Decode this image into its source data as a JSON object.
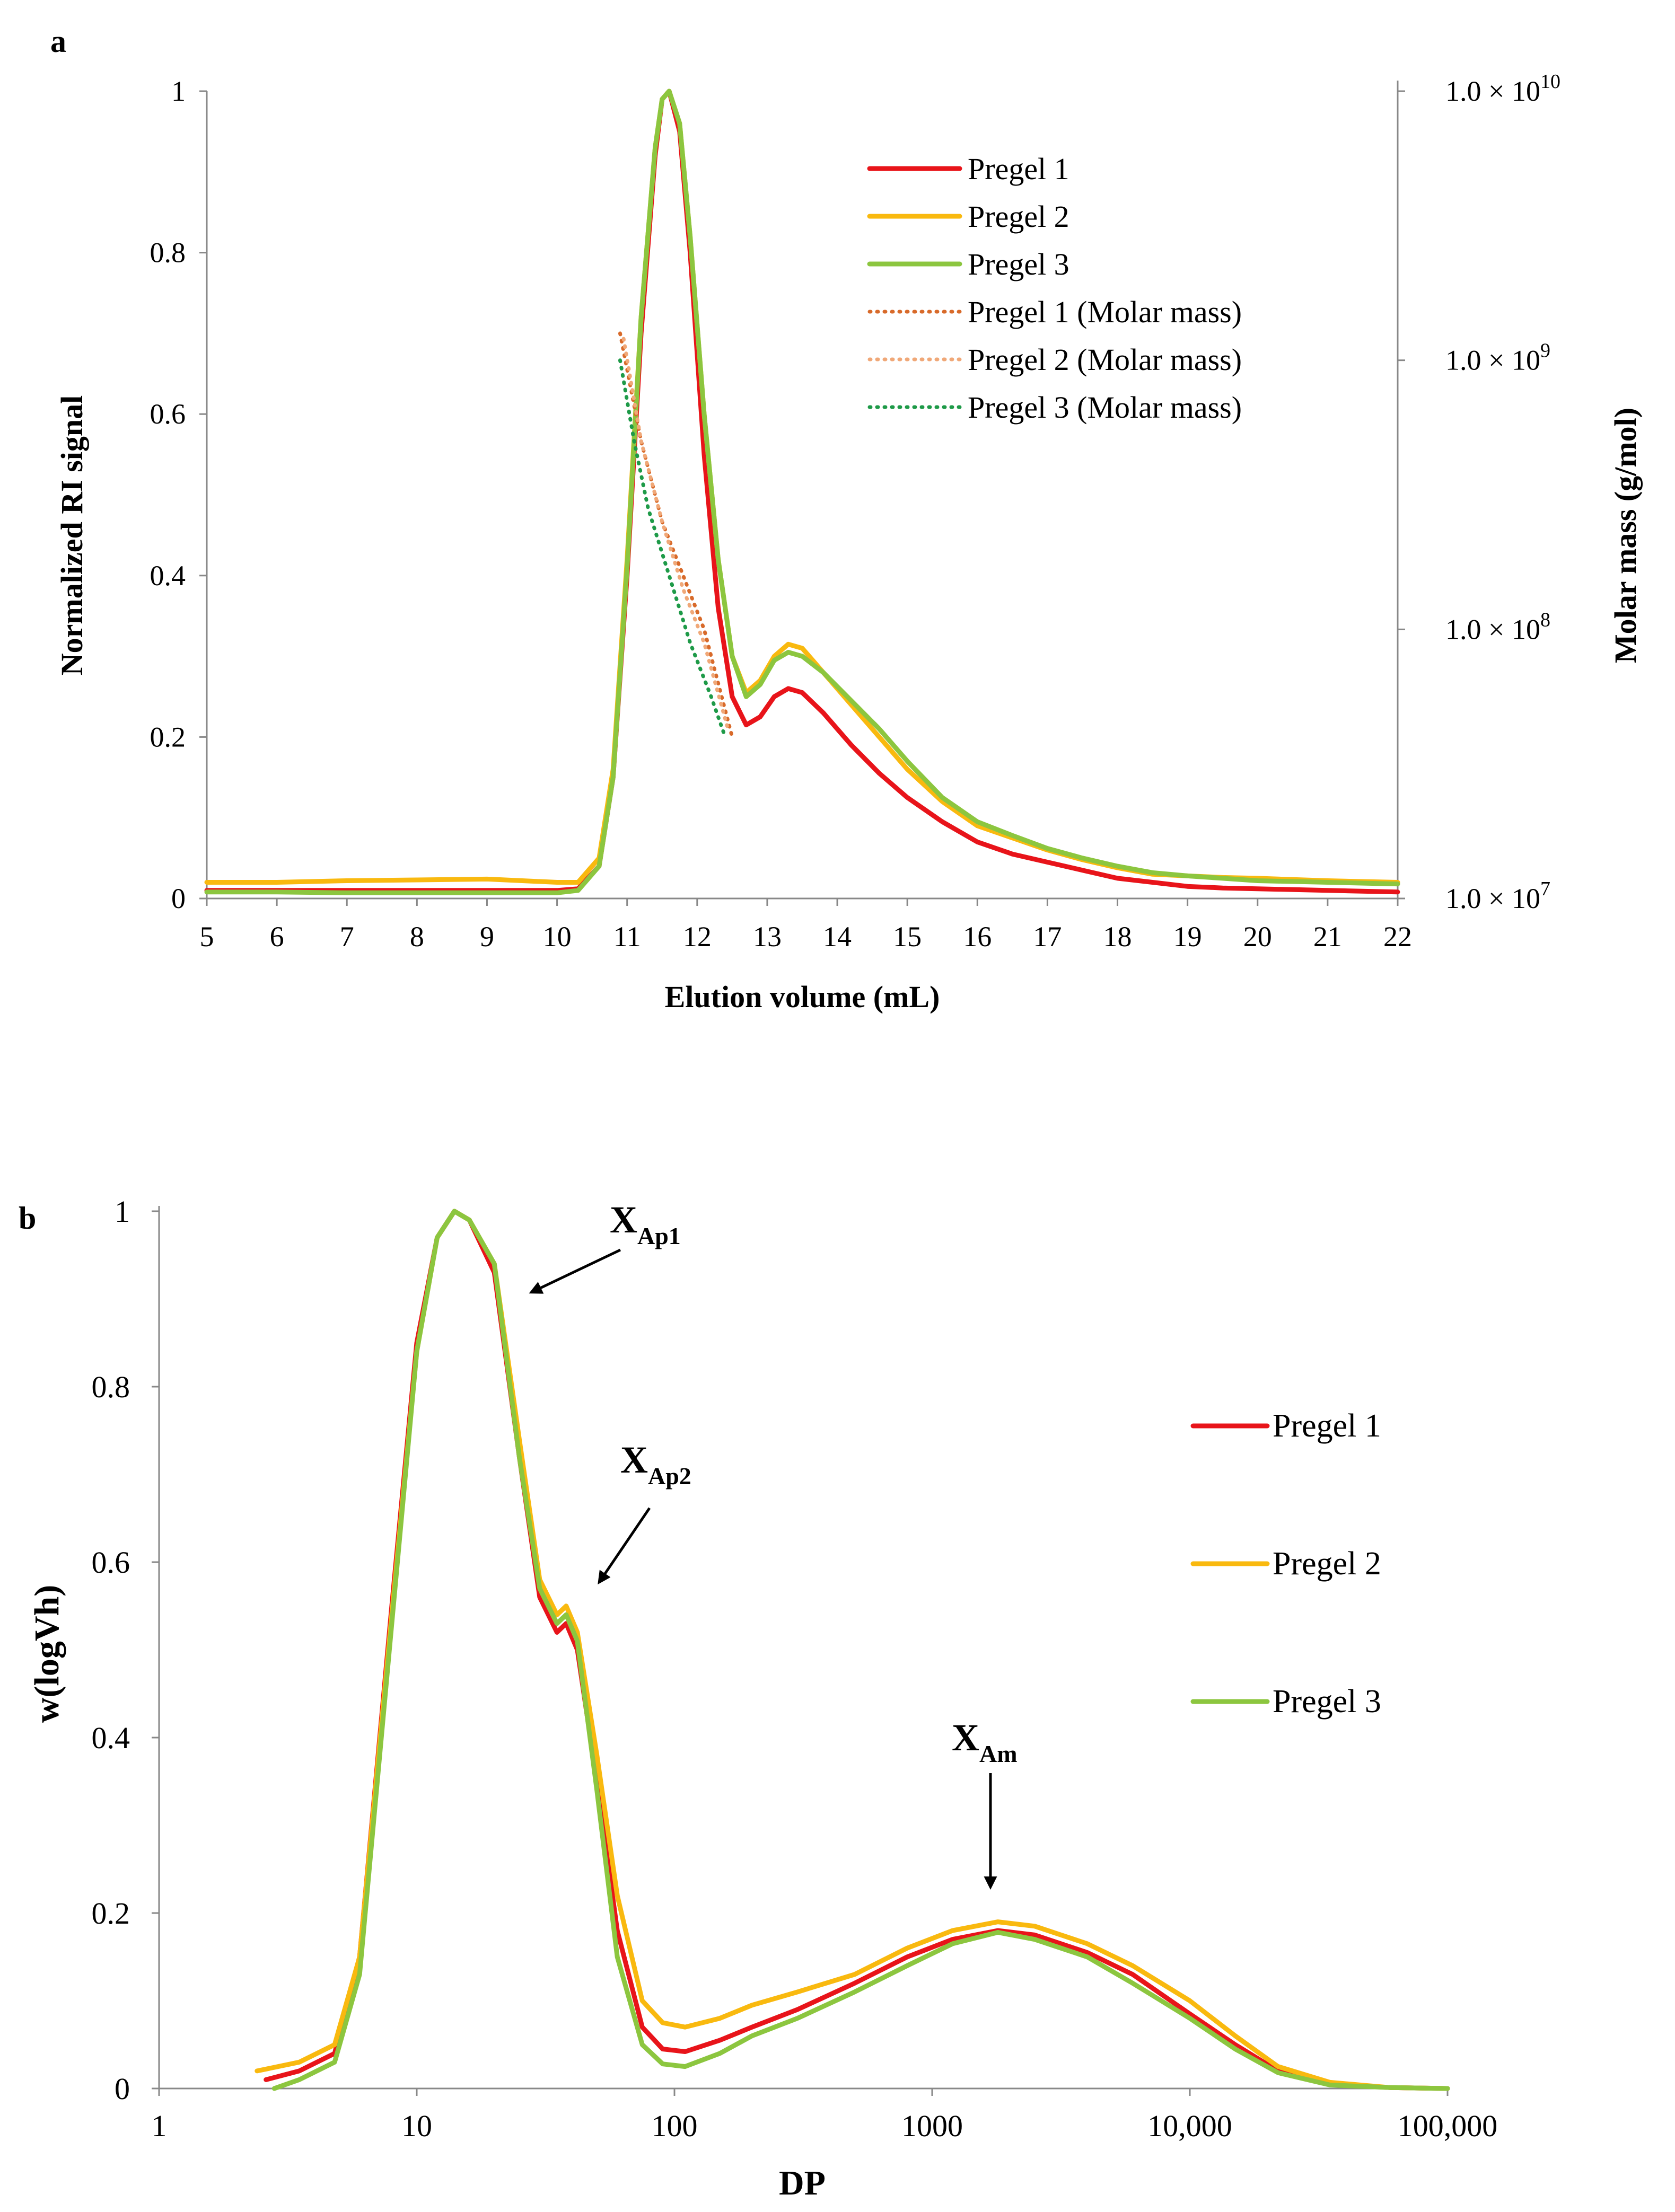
{
  "colors": {
    "pregel1": "#E8141A",
    "pregel2": "#F9B90F",
    "pregel3": "#8CC63F",
    "mm1": "#D86A2A",
    "mm2": "#F0A878",
    "mm3": "#1E9A48"
  },
  "chart_data": [
    {
      "panel": "a",
      "type": "line",
      "xlabel": "Elution volume (mL)",
      "ylabel": "Normalized RI signal",
      "y2label": "Molar mass (g/mol)",
      "xlim": [
        5,
        22
      ],
      "ylim": [
        0,
        1
      ],
      "y2lim_log10": [
        7,
        10
      ],
      "xticks": [
        "5",
        "6",
        "7",
        "8",
        "9",
        "10",
        "11",
        "12",
        "13",
        "14",
        "15",
        "16",
        "17",
        "18",
        "19",
        "20",
        "21",
        "22"
      ],
      "yticks": [
        "0",
        "0.2",
        "0.4",
        "0.6",
        "0.8",
        "1"
      ],
      "y2ticks": [
        {
          "base": "1.0 × 10",
          "exp": "10",
          "log": 10
        },
        {
          "base": "1.0 × 10",
          "exp": "9",
          "log": 9
        },
        {
          "base": "1.0 × 10",
          "exp": "8",
          "log": 8
        },
        {
          "base": "1.0 × 10",
          "exp": "7",
          "log": 7
        }
      ],
      "legend": [
        "Pregel 1",
        "Pregel 2",
        "Pregel 3",
        "Pregel 1 (Molar mass)",
        "Pregel 2 (Molar mass)",
        "Pregel 3 (Molar mass)"
      ],
      "series": [
        {
          "name": "Pregel 1",
          "color_key": "pregel1",
          "x": [
            5,
            6,
            7,
            8,
            9,
            10,
            10.3,
            10.6,
            10.8,
            11,
            11.2,
            11.4,
            11.5,
            11.6,
            11.75,
            11.9,
            12.1,
            12.3,
            12.5,
            12.7,
            12.9,
            13.1,
            13.3,
            13.5,
            13.8,
            14.2,
            14.6,
            15,
            15.5,
            16,
            16.5,
            17,
            17.5,
            18,
            18.5,
            19,
            19.5,
            20,
            21,
            22
          ],
          "y": [
            0.01,
            0.01,
            0.01,
            0.01,
            0.01,
            0.01,
            0.012,
            0.04,
            0.15,
            0.4,
            0.7,
            0.92,
            0.99,
            1.0,
            0.95,
            0.8,
            0.55,
            0.36,
            0.25,
            0.215,
            0.225,
            0.25,
            0.26,
            0.255,
            0.23,
            0.19,
            0.155,
            0.125,
            0.095,
            0.07,
            0.055,
            0.045,
            0.035,
            0.025,
            0.02,
            0.015,
            0.013,
            0.012,
            0.01,
            0.008
          ]
        },
        {
          "name": "Pregel 2",
          "color_key": "pregel2",
          "x": [
            5,
            6,
            7,
            8,
            9,
            10,
            10.3,
            10.6,
            10.8,
            11,
            11.2,
            11.4,
            11.5,
            11.6,
            11.75,
            11.9,
            12.1,
            12.3,
            12.5,
            12.7,
            12.9,
            13.1,
            13.3,
            13.5,
            13.8,
            14.2,
            14.6,
            15,
            15.5,
            16,
            16.5,
            17,
            17.5,
            18,
            18.5,
            19,
            19.5,
            20,
            21,
            22
          ],
          "y": [
            0.02,
            0.02,
            0.022,
            0.023,
            0.024,
            0.02,
            0.02,
            0.05,
            0.16,
            0.42,
            0.72,
            0.93,
            0.99,
            1.0,
            0.96,
            0.82,
            0.6,
            0.42,
            0.3,
            0.255,
            0.27,
            0.3,
            0.315,
            0.31,
            0.28,
            0.24,
            0.2,
            0.16,
            0.12,
            0.09,
            0.075,
            0.06,
            0.048,
            0.038,
            0.03,
            0.028,
            0.026,
            0.025,
            0.022,
            0.02
          ]
        },
        {
          "name": "Pregel 3",
          "color_key": "pregel3",
          "x": [
            5,
            6,
            7,
            8,
            9,
            10,
            10.3,
            10.6,
            10.8,
            11,
            11.2,
            11.4,
            11.5,
            11.6,
            11.75,
            11.9,
            12.1,
            12.3,
            12.5,
            12.7,
            12.9,
            13.1,
            13.3,
            13.5,
            13.8,
            14.2,
            14.6,
            15,
            15.5,
            16,
            16.5,
            17,
            17.5,
            18,
            18.5,
            19,
            19.5,
            20,
            21,
            22
          ],
          "y": [
            0.008,
            0.008,
            0.007,
            0.007,
            0.007,
            0.007,
            0.01,
            0.04,
            0.15,
            0.41,
            0.72,
            0.93,
            0.99,
            1.0,
            0.96,
            0.82,
            0.6,
            0.42,
            0.3,
            0.25,
            0.265,
            0.295,
            0.305,
            0.3,
            0.28,
            0.245,
            0.21,
            0.17,
            0.125,
            0.095,
            0.078,
            0.062,
            0.05,
            0.04,
            0.032,
            0.028,
            0.025,
            0.022,
            0.02,
            0.018
          ]
        },
        {
          "name": "Pregel 1 (Molar mass)",
          "color_key": "mm1",
          "axis": "y2",
          "dotted": true,
          "x": [
            10.9,
            11.2,
            11.5,
            11.8,
            12.1,
            12.5
          ],
          "y_log10": [
            9.1,
            8.7,
            8.4,
            8.2,
            8.0,
            7.6
          ]
        },
        {
          "name": "Pregel 2 (Molar mass)",
          "color_key": "mm2",
          "axis": "y2",
          "dotted": true,
          "x": [
            10.95,
            11.2,
            11.5,
            11.8,
            12.1,
            12.45
          ],
          "y_log10": [
            9.08,
            8.7,
            8.4,
            8.15,
            7.95,
            7.62
          ]
        },
        {
          "name": "Pregel 3 (Molar mass)",
          "color_key": "mm3",
          "axis": "y2",
          "dotted": true,
          "x": [
            10.9,
            11.1,
            11.3,
            11.6,
            11.9,
            12.2,
            12.4
          ],
          "y_log10": [
            9.0,
            8.7,
            8.45,
            8.2,
            7.95,
            7.75,
            7.6
          ]
        }
      ]
    },
    {
      "panel": "b",
      "type": "line",
      "xlabel": "DP",
      "ylabel": "w(logVh)",
      "xscale": "log",
      "xlim": [
        1,
        100000
      ],
      "ylim": [
        0,
        1
      ],
      "xticks": [
        {
          "label": "1",
          "value": 1
        },
        {
          "label": "10",
          "value": 10
        },
        {
          "label": "100",
          "value": 100
        },
        {
          "label": "1000",
          "value": 1000
        },
        {
          "label": "10,000",
          "value": 10000
        },
        {
          "label": "100,000",
          "value": 100000
        }
      ],
      "yticks": [
        "0",
        "0.2",
        "0.4",
        "0.6",
        "0.8",
        "1"
      ],
      "legend": [
        "Pregel 1",
        "Pregel 2",
        "Pregel 3"
      ],
      "annotations": [
        {
          "main": "X",
          "sub": "Ap1"
        },
        {
          "main": "X",
          "sub": "Ap2"
        },
        {
          "main": "X",
          "sub": "Am"
        }
      ],
      "series": [
        {
          "name": "Pregel 1",
          "color_key": "pregel1",
          "x": [
            2.6,
            3.5,
            4.8,
            6,
            8,
            10,
            12,
            14,
            16,
            20,
            25,
            30,
            35,
            38,
            42,
            50,
            60,
            75,
            90,
            110,
            150,
            200,
            300,
            500,
            800,
            1200,
            1800,
            2500,
            4000,
            6000,
            10000,
            15000,
            22000,
            35000,
            60000,
            100000
          ],
          "y": [
            0.01,
            0.02,
            0.04,
            0.15,
            0.55,
            0.85,
            0.97,
            1.0,
            0.99,
            0.93,
            0.72,
            0.56,
            0.52,
            0.53,
            0.5,
            0.35,
            0.18,
            0.07,
            0.045,
            0.042,
            0.055,
            0.07,
            0.09,
            0.12,
            0.15,
            0.17,
            0.18,
            0.175,
            0.155,
            0.13,
            0.085,
            0.05,
            0.02,
            0.005,
            0.001,
            0.0
          ]
        },
        {
          "name": "Pregel 2",
          "color_key": "pregel2",
          "x": [
            2.4,
            3.5,
            4.8,
            6,
            8,
            10,
            12,
            14,
            16,
            20,
            25,
            30,
            35,
            38,
            42,
            50,
            60,
            75,
            90,
            110,
            150,
            200,
            300,
            500,
            800,
            1200,
            1800,
            2500,
            4000,
            6000,
            10000,
            15000,
            22000,
            35000,
            60000,
            100000
          ],
          "y": [
            0.02,
            0.03,
            0.05,
            0.15,
            0.54,
            0.84,
            0.97,
            1.0,
            0.99,
            0.94,
            0.74,
            0.58,
            0.54,
            0.55,
            0.52,
            0.38,
            0.22,
            0.1,
            0.075,
            0.07,
            0.08,
            0.095,
            0.11,
            0.13,
            0.16,
            0.18,
            0.19,
            0.185,
            0.165,
            0.14,
            0.1,
            0.06,
            0.025,
            0.007,
            0.001,
            0.0
          ]
        },
        {
          "name": "Pregel 3",
          "color_key": "pregel3",
          "x": [
            2.8,
            3.5,
            4.8,
            6,
            8,
            10,
            12,
            14,
            16,
            20,
            25,
            30,
            35,
            38,
            42,
            50,
            60,
            75,
            90,
            110,
            150,
            200,
            300,
            500,
            800,
            1200,
            1800,
            2500,
            4000,
            6000,
            10000,
            15000,
            22000,
            35000,
            60000,
            100000
          ],
          "y": [
            0.0,
            0.01,
            0.03,
            0.13,
            0.53,
            0.84,
            0.97,
            1.0,
            0.99,
            0.94,
            0.72,
            0.57,
            0.53,
            0.54,
            0.51,
            0.34,
            0.15,
            0.05,
            0.028,
            0.025,
            0.04,
            0.06,
            0.08,
            0.11,
            0.14,
            0.165,
            0.178,
            0.17,
            0.15,
            0.12,
            0.08,
            0.045,
            0.018,
            0.004,
            0.001,
            0.0
          ]
        }
      ]
    }
  ]
}
